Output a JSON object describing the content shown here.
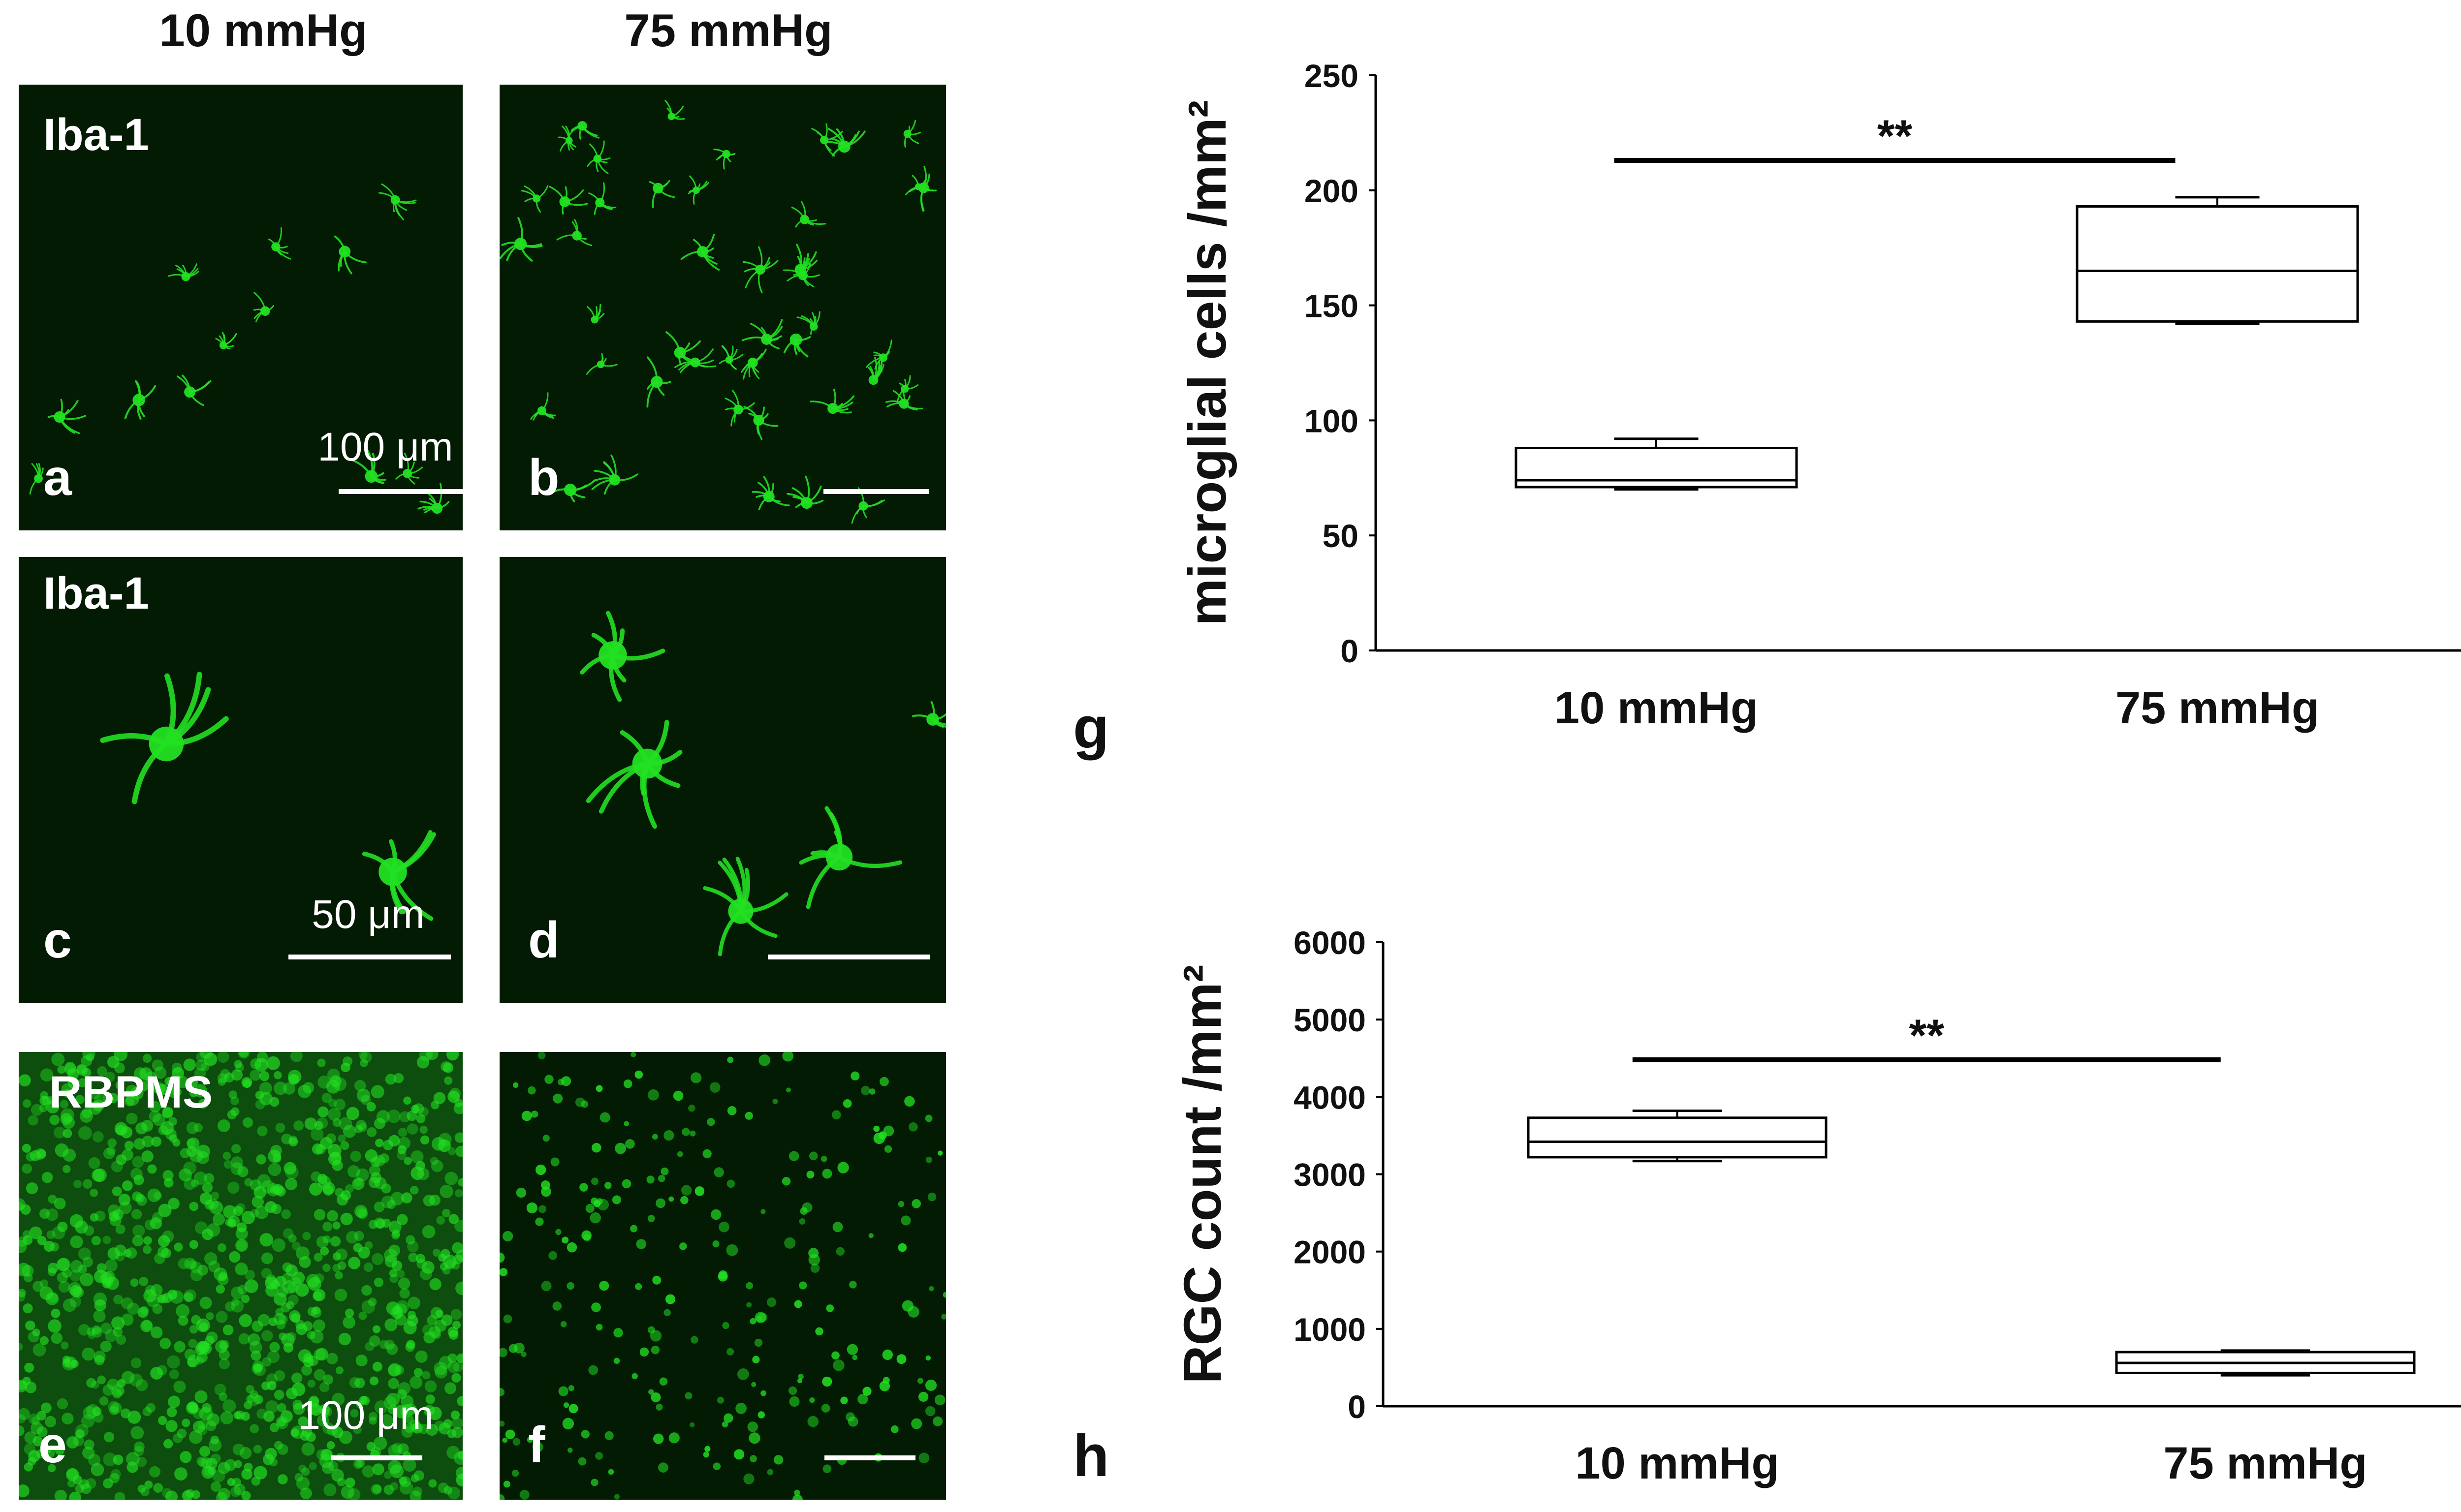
{
  "columns": [
    "10 mmHg",
    "75 mmHg"
  ],
  "panels": [
    {
      "letter": "a",
      "stain": "Iba-1",
      "scale": "100 μm"
    },
    {
      "letter": "b",
      "stain": "",
      "scale": ""
    },
    {
      "letter": "c",
      "stain": "Iba-1",
      "scale": "50 μm"
    },
    {
      "letter": "d",
      "stain": "",
      "scale": ""
    },
    {
      "letter": "e",
      "stain": "RBPMS",
      "scale": "100 μm"
    },
    {
      "letter": "f",
      "stain": "",
      "scale": ""
    }
  ],
  "colors": {
    "fluorescence": "#22e022",
    "background": "#031a03",
    "box_line": "#000000"
  },
  "chart_data": [
    {
      "panel_letter": "g",
      "type": "box",
      "categories": [
        "10 mmHg",
        "75 mmHg"
      ],
      "ylabel": "microglial cells /mm²",
      "ylim": [
        0,
        250
      ],
      "yticks": [
        0,
        50,
        100,
        150,
        200,
        250
      ],
      "boxes": [
        {
          "category": "10 mmHg",
          "min": 70,
          "q1": 71,
          "median": 74,
          "q3": 88,
          "max": 92
        },
        {
          "category": "75 mmHg",
          "min": 142,
          "q1": 143,
          "median": 165,
          "q3": 193,
          "max": 197
        }
      ],
      "significance": {
        "from": "10 mmHg",
        "to": "75 mmHg",
        "label": "**",
        "y": 213
      }
    },
    {
      "panel_letter": "h",
      "type": "box",
      "categories": [
        "10 mmHg",
        "75 mmHg"
      ],
      "ylabel": "RGC count /mm²",
      "ylim": [
        0,
        6000
      ],
      "yticks": [
        0,
        1000,
        2000,
        3000,
        4000,
        5000,
        6000
      ],
      "boxes": [
        {
          "category": "10 mmHg",
          "min": 3170,
          "q1": 3220,
          "median": 3420,
          "q3": 3730,
          "max": 3820
        },
        {
          "category": "75 mmHg",
          "min": 400,
          "q1": 430,
          "median": 560,
          "q3": 700,
          "max": 720
        }
      ],
      "significance": {
        "from": "10 mmHg",
        "to": "75 mmHg",
        "label": "**",
        "y": 4480
      }
    }
  ]
}
